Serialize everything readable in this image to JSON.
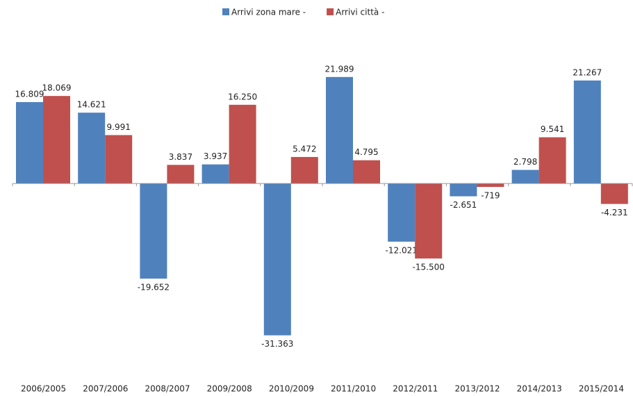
{
  "chart_data": {
    "type": "bar",
    "categories": [
      "2006/2005",
      "2007/2006",
      "2008/2007",
      "2009/2008",
      "2010/2009",
      "2011/2010",
      "2012/2011",
      "2013/2012",
      "2014/2013",
      "2015/2014"
    ],
    "series": [
      {
        "name": "Arrivi zona mare -",
        "color": "#4f81bd",
        "values": [
          16809,
          14621,
          -19652,
          3937,
          -31363,
          21989,
          -12021,
          -2651,
          2798,
          21267
        ],
        "value_labels": [
          "16.809",
          "14.621",
          "-19.652",
          "3.937",
          "-31.363",
          "21.989",
          "-12.021",
          "-2.651",
          "2.798",
          "21.267"
        ]
      },
      {
        "name": "Arrivi  città -",
        "color": "#c0504d",
        "values": [
          18069,
          9991,
          3837,
          16250,
          5472,
          4795,
          -15500,
          -719,
          9541,
          -4231
        ],
        "value_labels": [
          "18.069",
          "9.991",
          "3.837",
          "16.250",
          "5.472",
          "4.795",
          "-15.500",
          "-719",
          "9.541",
          "-4.231"
        ]
      }
    ],
    "ylim": [
      -35000,
      30000
    ],
    "legend": "top"
  }
}
